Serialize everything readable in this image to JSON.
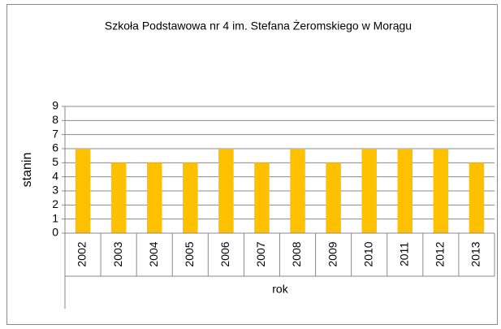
{
  "chart_data": {
    "type": "bar",
    "title": "Szkoła Podstawowa nr 4 im. Stefana Żeromskiego w Morągu",
    "y_label": "stanin",
    "x_label": "rok",
    "categories": [
      "2002",
      "2003",
      "2004",
      "2005",
      "2006",
      "2007",
      "2008",
      "2009",
      "2010",
      "2011",
      "2012",
      "2013"
    ],
    "values": [
      6,
      5,
      5,
      5,
      6,
      5,
      6,
      5,
      6,
      6,
      6,
      5
    ],
    "color": "#ffc000",
    "ylim": [
      0,
      9
    ],
    "yticks": [
      0,
      1,
      2,
      3,
      4,
      5,
      6,
      7,
      8,
      9
    ],
    "grid": true
  }
}
